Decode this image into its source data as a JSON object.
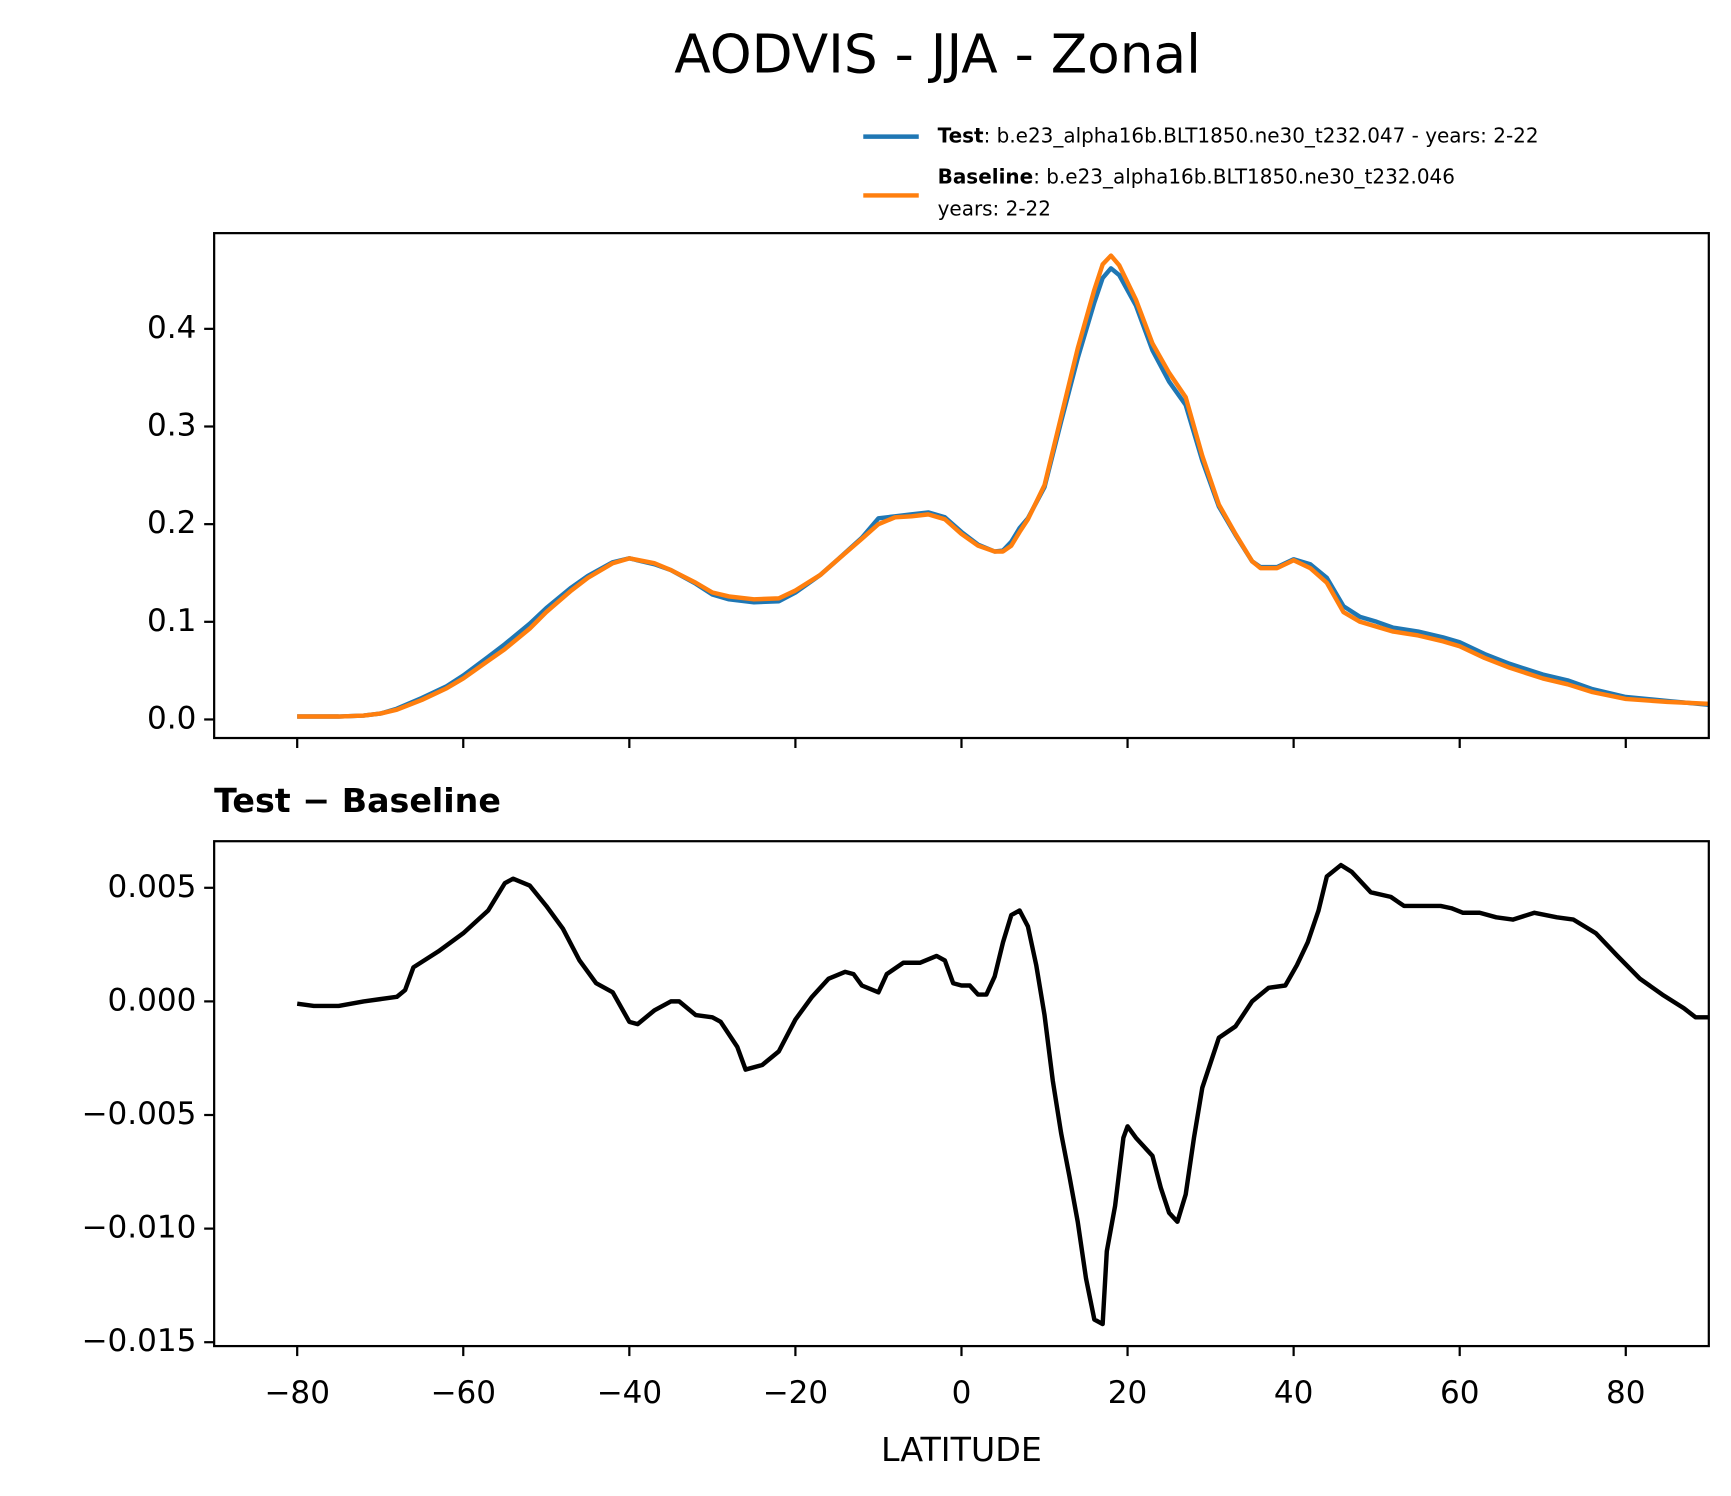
{
  "chart_data": [
    {
      "type": "line",
      "title": "AODVIS - JJA - Zonal",
      "x": [
        -80,
        -75,
        -72,
        -70,
        -68,
        -65,
        -62,
        -60,
        -57,
        -55,
        -52,
        -50,
        -47,
        -45,
        -42,
        -40,
        -37,
        -35,
        -32,
        -30,
        -28,
        -25,
        -22,
        -20,
        -17,
        -15,
        -12,
        -10,
        -8,
        -6,
        -4,
        -2,
        0,
        2,
        4,
        5,
        6,
        7,
        8,
        10,
        12,
        14,
        16,
        17,
        18,
        19,
        21,
        23,
        25,
        27,
        29,
        31,
        33,
        35,
        36,
        38,
        40,
        42,
        44,
        46,
        48,
        50,
        52,
        55,
        58,
        60,
        63,
        66,
        70,
        73,
        76,
        80,
        85,
        90
      ],
      "series": [
        {
          "name": "Test",
          "description": [
            ": b.e23_alpha16b.BLT1850.ne30_t232.047 - years: 2-22"
          ],
          "color": "#1f77b4",
          "values": [
            0.003,
            0.003,
            0.004,
            0.006,
            0.011,
            0.022,
            0.034,
            0.045,
            0.064,
            0.077,
            0.098,
            0.114,
            0.135,
            0.147,
            0.161,
            0.165,
            0.159,
            0.153,
            0.139,
            0.128,
            0.123,
            0.12,
            0.121,
            0.13,
            0.148,
            0.163,
            0.186,
            0.206,
            0.208,
            0.21,
            0.212,
            0.207,
            0.192,
            0.179,
            0.172,
            0.173,
            0.182,
            0.196,
            0.206,
            0.238,
            0.305,
            0.37,
            0.427,
            0.452,
            0.462,
            0.455,
            0.424,
            0.378,
            0.346,
            0.322,
            0.265,
            0.218,
            0.189,
            0.162,
            0.156,
            0.156,
            0.164,
            0.159,
            0.145,
            0.116,
            0.105,
            0.1,
            0.094,
            0.09,
            0.084,
            0.079,
            0.067,
            0.057,
            0.046,
            0.04,
            0.031,
            0.023,
            0.019,
            0.015
          ]
        },
        {
          "name": "Baseline",
          "description": [
            ": b.e23_alpha16b.BLT1850.ne30_t232.046",
            "years: 2-22"
          ],
          "color": "#ff7f0e",
          "values": [
            0.003,
            0.003,
            0.004,
            0.006,
            0.01,
            0.02,
            0.032,
            0.042,
            0.06,
            0.072,
            0.093,
            0.11,
            0.132,
            0.145,
            0.16,
            0.165,
            0.16,
            0.153,
            0.14,
            0.13,
            0.126,
            0.123,
            0.124,
            0.132,
            0.148,
            0.163,
            0.185,
            0.2,
            0.207,
            0.208,
            0.21,
            0.205,
            0.19,
            0.178,
            0.172,
            0.172,
            0.178,
            0.192,
            0.205,
            0.24,
            0.31,
            0.38,
            0.44,
            0.466,
            0.475,
            0.465,
            0.43,
            0.385,
            0.355,
            0.33,
            0.27,
            0.22,
            0.19,
            0.162,
            0.155,
            0.155,
            0.163,
            0.155,
            0.14,
            0.11,
            0.1,
            0.095,
            0.09,
            0.086,
            0.08,
            0.075,
            0.063,
            0.053,
            0.042,
            0.036,
            0.028,
            0.021,
            0.018,
            0.016
          ]
        }
      ],
      "xlim": [
        -90,
        90
      ],
      "xticks": [
        -80,
        -60,
        -40,
        -20,
        0,
        20,
        40,
        60,
        80
      ],
      "ylim": [
        -0.019,
        0.498
      ],
      "yticks": [
        {
          "value": 0,
          "label": "0.0"
        },
        0.1,
        0.2,
        0.3,
        0.4
      ]
    },
    {
      "type": "line",
      "title": "Test − Baseline",
      "xlabel": "LATITUDE",
      "x": [
        -80,
        -78,
        -75,
        -72,
        -70,
        -68,
        -67,
        -66,
        -63,
        -60,
        -57,
        -55,
        -54,
        -52,
        -50,
        -48,
        -46,
        -44,
        -42,
        -40,
        -39,
        -37,
        -35,
        -34,
        -32,
        -30,
        -29,
        -27,
        -26,
        -24,
        -22,
        -20,
        -18,
        -16,
        -14,
        -13,
        -12,
        -10,
        -9,
        -7,
        -5,
        -3,
        -2,
        -1,
        0,
        1,
        2,
        3,
        4,
        5,
        6,
        7,
        8,
        9,
        10,
        11,
        12,
        13,
        14,
        15,
        16,
        17,
        17.5,
        18.5,
        19.5,
        20,
        21,
        23,
        24,
        25,
        26,
        27,
        28,
        29,
        30,
        31,
        33,
        35,
        37,
        39,
        40.4,
        41.7,
        43,
        44,
        45.7,
        47,
        49.3,
        51.7,
        53.3,
        57.7,
        59,
        60.4,
        62.4,
        64.4,
        66.4,
        69,
        71.7,
        73.7,
        76.4,
        79,
        81.7,
        84.4,
        87,
        88.4,
        90
      ],
      "series": [
        {
          "color": "#000000",
          "values": [
            -0.0001,
            -0.0002,
            -0.0002,
            0,
            0.0001,
            0.0002,
            0.0005,
            0.0015,
            0.0022,
            0.003,
            0.004,
            0.0052,
            0.0054,
            0.0051,
            0.0042,
            0.0032,
            0.0018,
            0.0008,
            0.0004,
            -0.0009,
            -0.001,
            -0.0004,
            0,
            0,
            -0.0006,
            -0.0007,
            -0.0009,
            -0.002,
            -0.003,
            -0.0028,
            -0.0022,
            -0.0008,
            0.0002,
            0.001,
            0.0013,
            0.0012,
            0.0007,
            0.0004,
            0.0012,
            0.0017,
            0.0017,
            0.002,
            0.0018,
            0.0008,
            0.0007,
            0.0007,
            0.0003,
            0.0003,
            0.0011,
            0.0026,
            0.0038,
            0.004,
            0.0033,
            0.0016,
            -0.0006,
            -0.0035,
            -0.0058,
            -0.0077,
            -0.0097,
            -0.0122,
            -0.014,
            -0.0142,
            -0.011,
            -0.009,
            -0.006,
            -0.0055,
            -0.006,
            -0.0068,
            -0.0082,
            -0.0093,
            -0.0097,
            -0.0085,
            -0.006,
            -0.0038,
            -0.0027,
            -0.0016,
            -0.0011,
            0,
            0.0006,
            0.0007,
            0.0016,
            0.0026,
            0.004,
            0.0055,
            0.006,
            0.0057,
            0.0048,
            0.0046,
            0.0042,
            0.0042,
            0.0041,
            0.0039,
            0.0039,
            0.0037,
            0.0036,
            0.0039,
            0.0037,
            0.0036,
            0.003,
            0.002,
            0.001,
            0.0003,
            -0.0003,
            -0.0007,
            -0.0007
          ]
        }
      ],
      "xlim": [
        -90,
        90
      ],
      "xticks": [
        {
          "value": -80,
          "label": "−80"
        },
        {
          "value": -60,
          "label": "−60"
        },
        {
          "value": -40,
          "label": "−40"
        },
        {
          "value": -20,
          "label": "−20"
        },
        0,
        20,
        40,
        60,
        80
      ],
      "ylim": [
        -0.01517,
        0.00705
      ],
      "yticks": [
        {
          "value": -0.015,
          "label": "−0.015"
        },
        {
          "value": -0.01,
          "label": "−0.010"
        },
        {
          "value": -0.005,
          "label": "−0.005"
        },
        {
          "value": 0,
          "label": "0.000"
        },
        0.005
      ]
    }
  ]
}
